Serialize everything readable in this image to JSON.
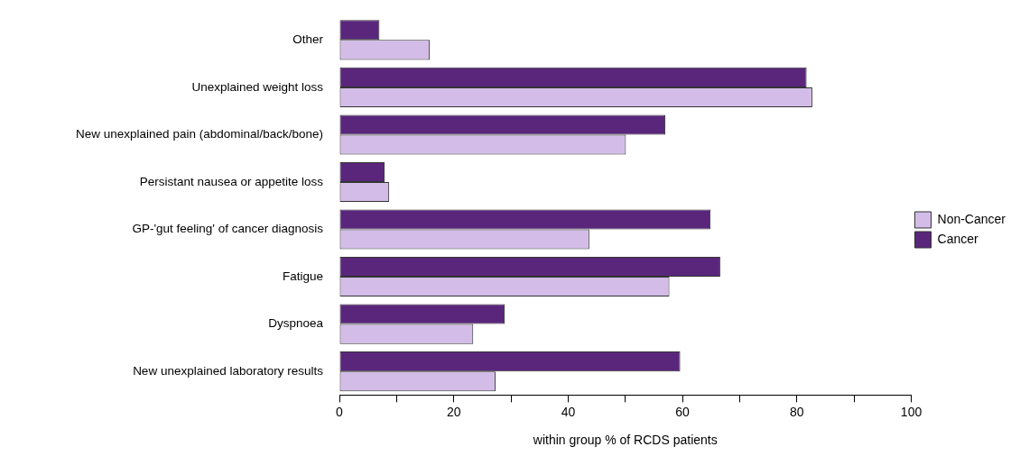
{
  "chart_data": {
    "type": "bar",
    "orientation": "horizontal",
    "xlabel": "within group % of RCDS patients",
    "categories": [
      "Other",
      "Unexplained weight loss",
      "New unexplained pain (abdominal/back/bone)",
      "Persistant nausea or appetite loss",
      "GP-'gut feeling' of cancer diagnosis",
      "Fatigue",
      "Dyspnoea",
      "New unexplained laboratory results"
    ],
    "series": [
      {
        "name": "Non-Cancer",
        "color": "#d3bde8",
        "values": [
          15.8,
          82.7,
          50.1,
          8.7,
          43.7,
          57.7,
          23.4,
          27.3
        ]
      },
      {
        "name": "Cancer",
        "color": "#5a267c",
        "values": [
          7.0,
          81.7,
          57.0,
          7.9,
          64.9,
          66.6,
          28.9,
          59.6
        ]
      }
    ],
    "xlim": [
      0,
      100
    ],
    "xticks": [
      0,
      {
        "value": 10,
        "label": null
      },
      20,
      {
        "value": 30,
        "label": null
      },
      40,
      {
        "value": 50,
        "label": null
      },
      60,
      {
        "value": 70,
        "label": null
      },
      80,
      {
        "value": 90,
        "label": null
      },
      100
    ],
    "grid": false,
    "legend": "right"
  }
}
